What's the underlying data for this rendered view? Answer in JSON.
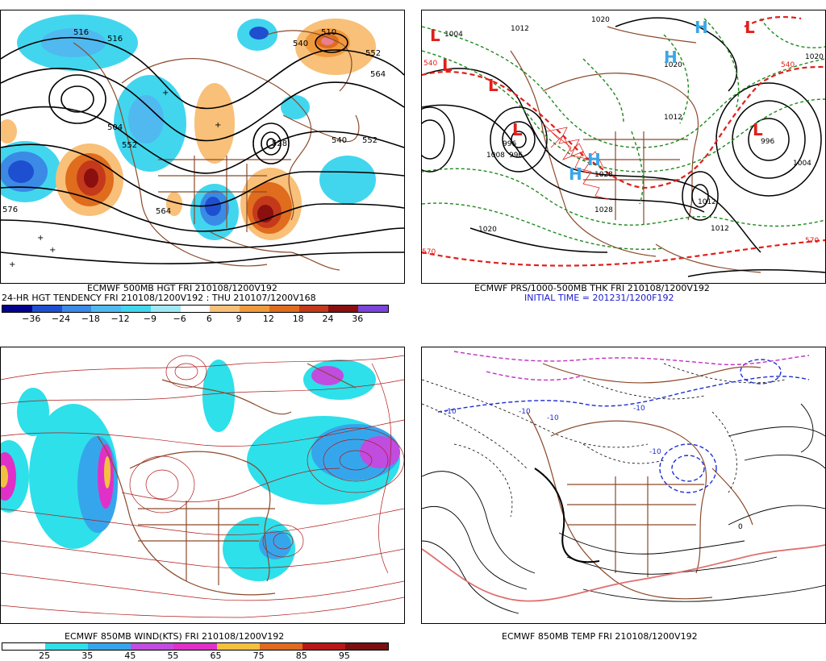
{
  "panels": {
    "p1": {
      "caption1": "ECMWF 500MB HGT FRI 210108/1200V192",
      "caption2": "24-HR HGT TENDENCY FRI 210108/1200V192 : THU 210107/1200V168",
      "contour_labels": [
        "516",
        "540",
        "552",
        "564",
        "510",
        "552",
        "528",
        "540",
        "552",
        "576",
        "564",
        "552",
        "504"
      ],
      "colorbar": {
        "labels": [
          "−36",
          "−24",
          "−18",
          "−12",
          "−9",
          "−6",
          "6",
          "9",
          "12",
          "18",
          "24",
          "36"
        ],
        "colors": [
          "#00008b",
          "#1e4fd0",
          "#3a8ae6",
          "#4fb9f0",
          "#41d6ee",
          "#a0e8f5",
          "#ffffff",
          "#f8c078",
          "#f09a3e",
          "#e06c1e",
          "#c4391b",
          "#8b0f0f",
          "#7a45d8"
        ]
      }
    },
    "p2": {
      "caption1": "ECMWF PRS/1000-500MB THK FRI 210108/1200V192",
      "caption2": "INITIAL TIME = 201231/1200F192",
      "pressure_labels": [
        "1020",
        "1004",
        "1012",
        "1008",
        "996",
        "1004",
        "1028",
        "1020",
        "1012",
        "1028",
        "996",
        "1004",
        "1012",
        "1020",
        "1020",
        "1012"
      ],
      "thickness_labels": [
        "540",
        "570",
        "570",
        "540"
      ],
      "centers": [
        {
          "type": "L",
          "color": "#e0201b"
        },
        {
          "type": "L",
          "color": "#e0201b"
        },
        {
          "type": "L",
          "color": "#e0201b"
        },
        {
          "type": "L",
          "color": "#e0201b"
        },
        {
          "type": "L",
          "color": "#e0201b"
        },
        {
          "type": "L",
          "color": "#e0201b"
        },
        {
          "type": "H",
          "color": "#3aa6e8"
        },
        {
          "type": "H",
          "color": "#3aa6e8"
        },
        {
          "type": "H",
          "color": "#3aa6e8"
        },
        {
          "type": "H",
          "color": "#3aa6e8"
        }
      ]
    },
    "p3": {
      "caption1": "ECMWF 850MB WIND(KTS) FRI 210108/1200V192",
      "colorbar": {
        "labels": [
          "25",
          "35",
          "45",
          "55",
          "65",
          "75",
          "85",
          "95"
        ],
        "colors": [
          "#ffffff",
          "#2de0ea",
          "#36a6ec",
          "#c04ce0",
          "#e030c8",
          "#f4c040",
          "#e06a20",
          "#b81818",
          "#7a1010"
        ]
      }
    },
    "p4": {
      "caption1": "ECMWF 850MB TEMP FRI 210108/1200V192",
      "temp_labels": [
        "-10",
        "-10",
        "-10",
        "0",
        "-10",
        "-10"
      ]
    }
  },
  "colors": {
    "coastline": "#8b4a2b",
    "contour": "#000000",
    "pressure_green": "#1f8a1f",
    "thickness_red": "#e0201b",
    "streamline": "#b01818",
    "cold_blue": "#1e2fd0",
    "isotherm_zero_pink": "#e07070",
    "magenta": "#c030c0"
  }
}
